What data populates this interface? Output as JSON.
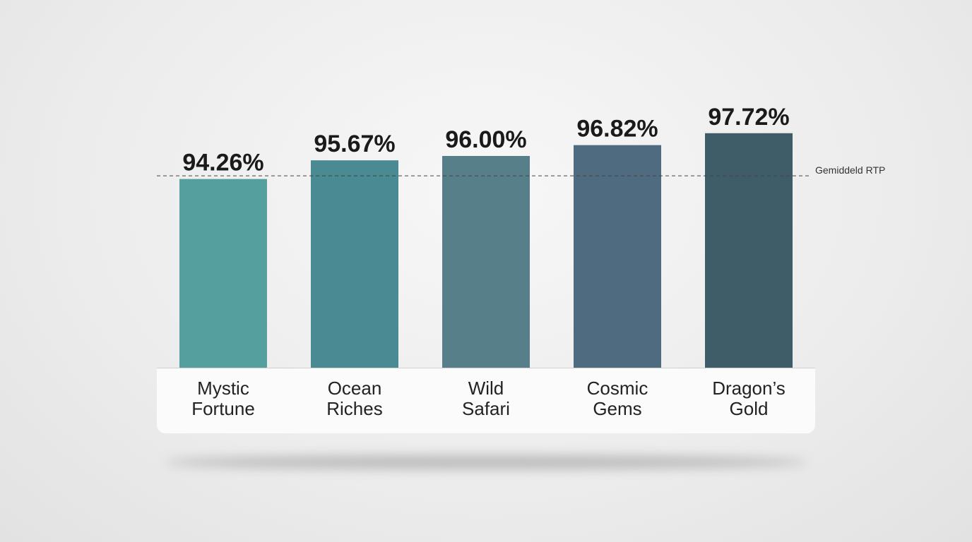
{
  "chart_data": {
    "type": "bar",
    "categories": [
      "Mystic Fortune",
      "Ocean Riches",
      "Wild Safari",
      "Cosmic Gems",
      "Dragon’s Gold"
    ],
    "values": [
      94.26,
      95.67,
      96.0,
      96.82,
      97.72
    ],
    "value_labels": [
      "94.26%",
      "95.67%",
      "96.00%",
      "96.82%",
      "97.72%"
    ],
    "colors": [
      "#55a09f",
      "#4a8a92",
      "#577f8a",
      "#4f6b80",
      "#3f5d68"
    ],
    "ylim": [
      80,
      100
    ],
    "reference_line": {
      "label": "Gemiddeld RTP",
      "value": 94.5
    }
  }
}
